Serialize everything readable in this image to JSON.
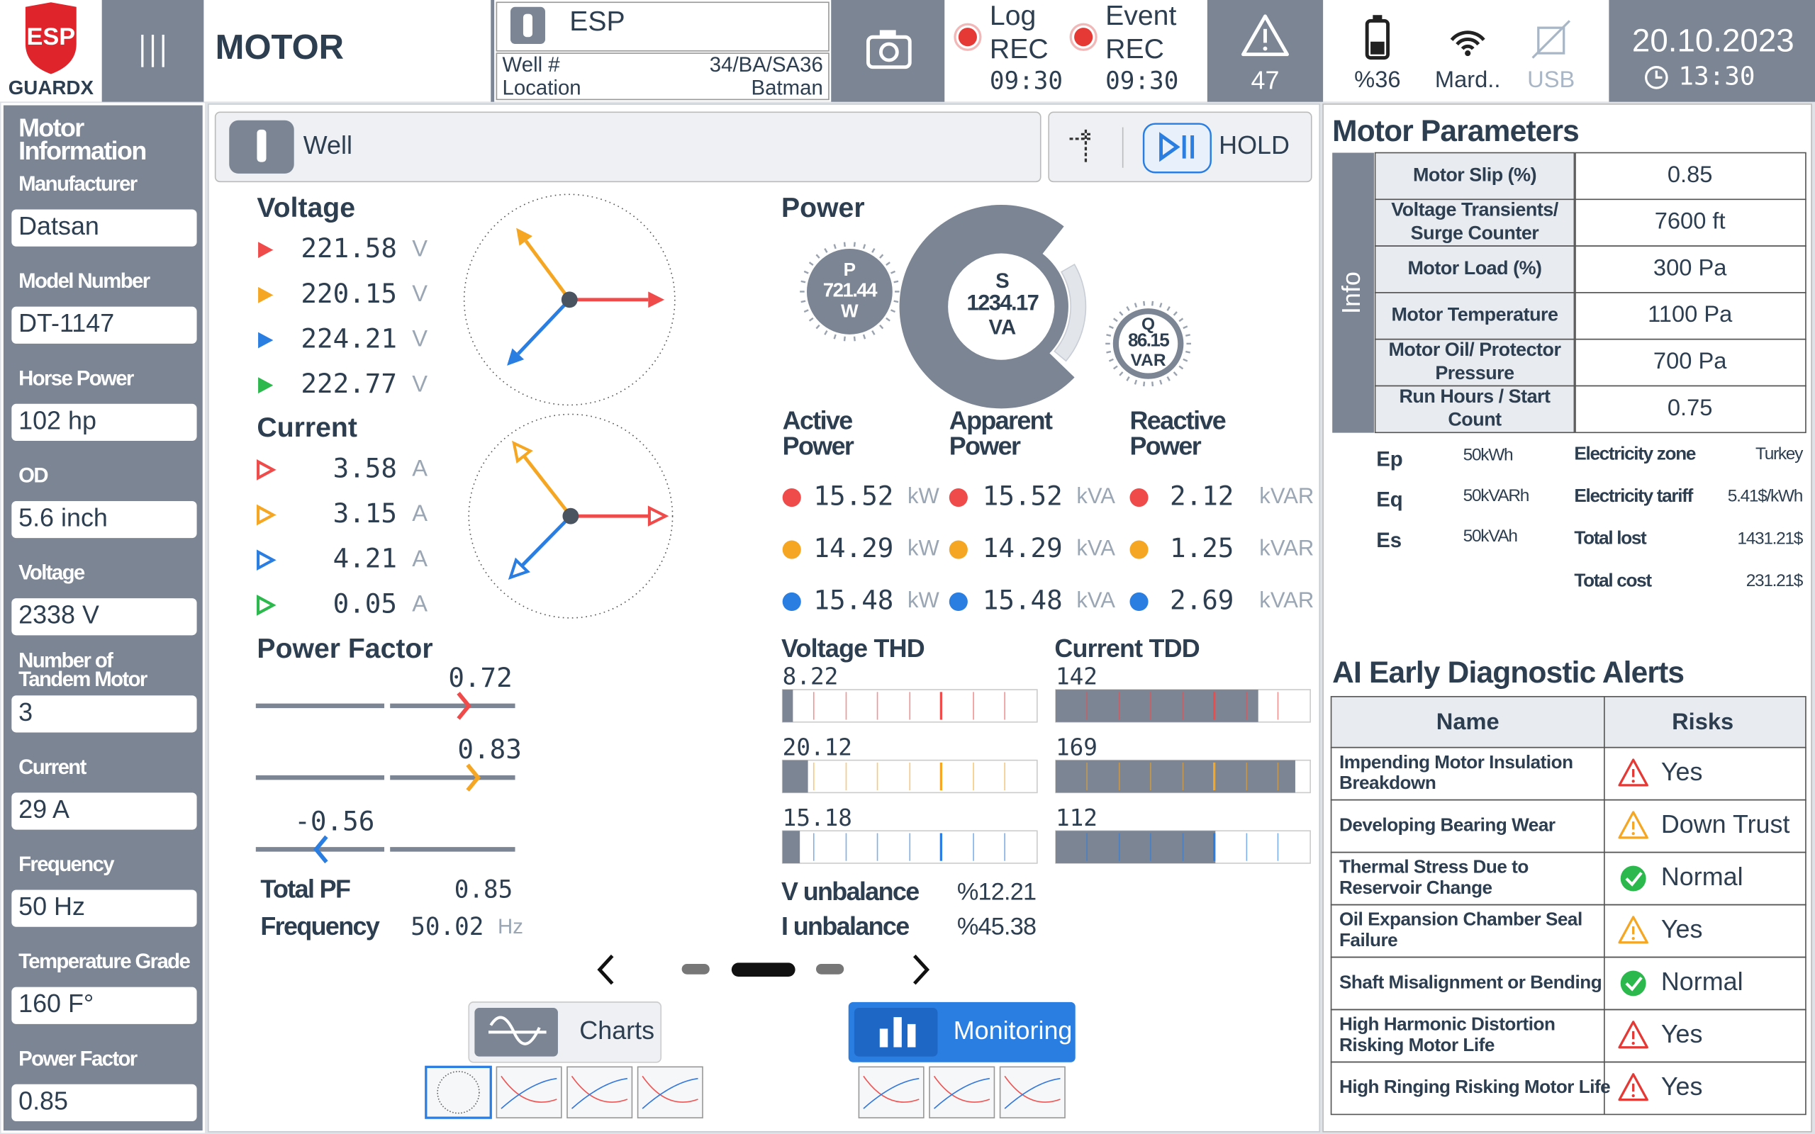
{
  "header": {
    "logo": {
      "top": "ESP",
      "bottom": "GUARDX"
    },
    "title": "MOTOR",
    "device": "ESP",
    "well": {
      "label": "Well #",
      "value": "34/BA/SA36"
    },
    "location": {
      "label": "Location",
      "value": "Batman"
    },
    "log": {
      "title": "Log",
      "state": "REC",
      "time": "09:30"
    },
    "event": {
      "title": "Event",
      "state": "REC",
      "time": "09:30"
    },
    "alerts": "47",
    "battery": "%36",
    "wifi": "Mard..",
    "usb": "USB",
    "date": "20.10.2023",
    "time": "13:30"
  },
  "sidebar": {
    "title": [
      "Motor",
      "Information"
    ],
    "fields": [
      {
        "label": [
          "Manufacturer"
        ],
        "value": "Datsan"
      },
      {
        "label": [
          "Model Number"
        ],
        "value": "DT-1147"
      },
      {
        "label": [
          "Horse Power"
        ],
        "value": "102 hp"
      },
      {
        "label": [
          "OD"
        ],
        "value": "5.6 inch"
      },
      {
        "label": [
          "Voltage"
        ],
        "value": "2338 V"
      },
      {
        "label": [
          "Number of",
          "Tandem Motor"
        ],
        "value": "3"
      },
      {
        "label": [
          "Current"
        ],
        "value": "29 A"
      },
      {
        "label": [
          "Frequency"
        ],
        "value": "50 Hz"
      },
      {
        "label": [
          "Temperature Grade"
        ],
        "value": "160 F°"
      },
      {
        "label": [
          "Power Factor"
        ],
        "value": "0.85"
      }
    ]
  },
  "toolbar": {
    "tab": "Well",
    "hold": "HOLD"
  },
  "voltage": {
    "title": "Voltage",
    "rows": [
      {
        "value": "221.58",
        "unit": "V"
      },
      {
        "value": "220.15",
        "unit": "V"
      },
      {
        "value": "224.21",
        "unit": "V"
      },
      {
        "value": "222.77",
        "unit": "V"
      }
    ]
  },
  "current": {
    "title": "Current",
    "rows": [
      {
        "value": "3.58",
        "unit": "A"
      },
      {
        "value": "3.15",
        "unit": "A"
      },
      {
        "value": "4.21",
        "unit": "A"
      },
      {
        "value": "0.05",
        "unit": "A"
      }
    ]
  },
  "power_factor": {
    "title": "Power Factor",
    "rows": [
      "0.72",
      "0.83",
      "-0.56"
    ],
    "total": {
      "label": "Total PF",
      "value": "0.85"
    },
    "frequency": {
      "label": "Frequency",
      "value": "50.02",
      "unit": "Hz"
    }
  },
  "power": {
    "title": "Power",
    "p": {
      "symbol": "P",
      "value": "721.44",
      "unit": "W"
    },
    "s": {
      "symbol": "S",
      "value": "1234.17",
      "unit": "VA"
    },
    "q": {
      "symbol": "Q",
      "value": "86.15",
      "unit": "VAR"
    },
    "labels": [
      [
        "Active",
        "Power"
      ],
      [
        "Apparent",
        "Power"
      ],
      [
        "Reactive",
        "Power"
      ]
    ],
    "rows": [
      [
        {
          "value": "15.52",
          "unit": "kW"
        },
        {
          "value": "15.52",
          "unit": "kVA"
        },
        {
          "value": "2.12",
          "unit": "kVAR"
        }
      ],
      [
        {
          "value": "14.29",
          "unit": "kW"
        },
        {
          "value": "14.29",
          "unit": "kVA"
        },
        {
          "value": "1.25",
          "unit": "kVAR"
        }
      ],
      [
        {
          "value": "15.48",
          "unit": "kW"
        },
        {
          "value": "15.48",
          "unit": "kVA"
        },
        {
          "value": "2.69",
          "unit": "kVAR"
        }
      ]
    ]
  },
  "thd": {
    "title": "Voltage THD",
    "values": [
      "8.22",
      "20.12",
      "15.18"
    ]
  },
  "tdd": {
    "title": "Current TDD",
    "values": [
      "142",
      "169",
      "112"
    ]
  },
  "unbalance": [
    {
      "label": "V unbalance",
      "value": "%12.21"
    },
    {
      "label": "I unbalance",
      "value": "%45.38"
    }
  ],
  "buttons": {
    "charts": "Charts",
    "monitoring": "Monitoring"
  },
  "parameters": {
    "title": "Motor Parameters",
    "side": "Info",
    "rows": [
      {
        "label": [
          "Motor Slip (%)"
        ],
        "value": "0.85"
      },
      {
        "label": [
          "Voltage  Transients/",
          "Surge Counter"
        ],
        "value": "7600 ft"
      },
      {
        "label": [
          "Motor Load (%)"
        ],
        "value": "300 Pa"
      },
      {
        "label": [
          "Motor Temperature"
        ],
        "value": "1100 Pa"
      },
      {
        "label": [
          "Motor Oil/ Protector",
          "Pressure"
        ],
        "value": "700 Pa"
      },
      {
        "label": [
          "Run Hours / Start",
          "Count"
        ],
        "value": "0.75"
      }
    ]
  },
  "energy": [
    {
      "label": "Ep",
      "value": "50kWh"
    },
    {
      "label": "Eq",
      "value": "50kVARh"
    },
    {
      "label": "Es",
      "value": "50kVAh"
    }
  ],
  "tariff": [
    {
      "label": "Electricity zone",
      "value": "Turkey"
    },
    {
      "label": "Electricity tariff",
      "value": "5.41$/kWh"
    },
    {
      "label": "Total lost",
      "value": "1431.21$"
    },
    {
      "label": "Total cost",
      "value": "231.21$"
    }
  ],
  "alerts": {
    "title": "AI Early Diagnostic Alerts",
    "columns": [
      "Name",
      "Risks"
    ],
    "rows": [
      {
        "name": [
          "Impending Motor Insulation",
          "Breakdown"
        ],
        "risk": "Yes"
      },
      {
        "name": [
          "Developing Bearing Wear"
        ],
        "risk": "Down Trust"
      },
      {
        "name": [
          "Thermal Stress Due to",
          "Reservoir Change"
        ],
        "risk": "Normal"
      },
      {
        "name": [
          "Oil Expansion Chamber Seal",
          "Failure"
        ],
        "risk": "Yes"
      },
      {
        "name": [
          "Shaft Misalignment or Bending"
        ],
        "risk": "Normal"
      },
      {
        "name": [
          "High Harmonic Distortion",
          "Risking Motor Life"
        ],
        "risk": "Yes"
      },
      {
        "name": [
          "High Ringing Risking Motor Life"
        ],
        "risk": "Yes"
      }
    ]
  }
}
